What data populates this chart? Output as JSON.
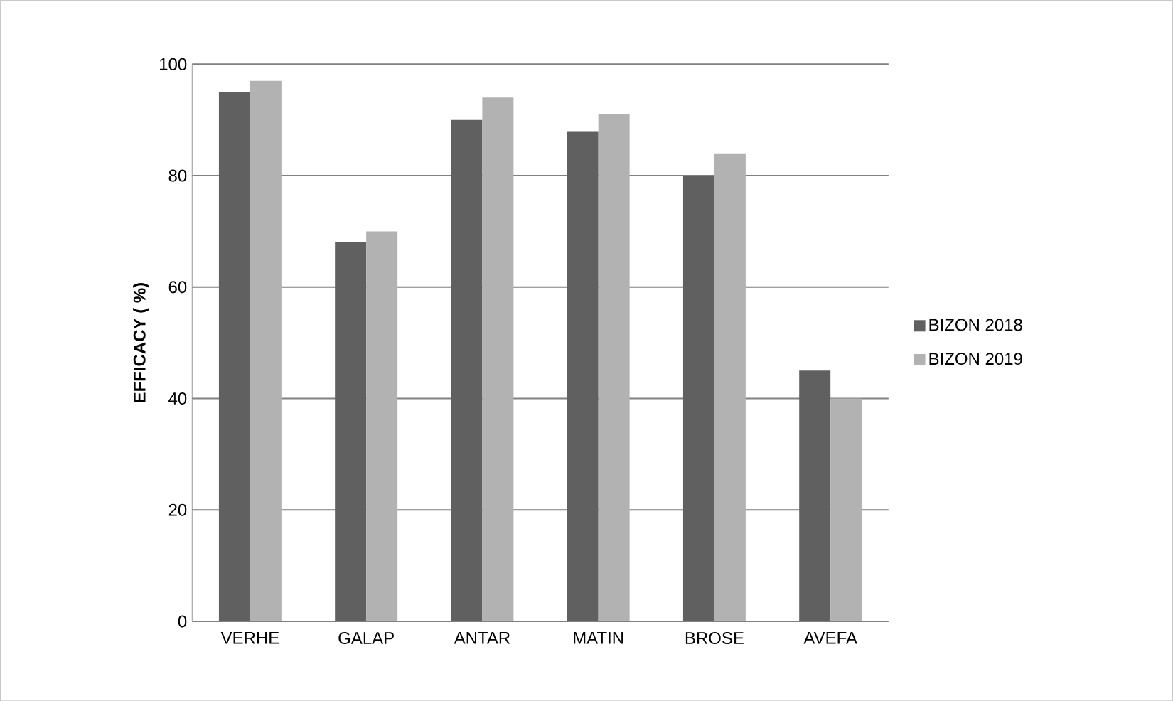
{
  "chart_data": {
    "type": "bar",
    "ylabel": "EFFICACY ( %)",
    "categories": [
      "VERHE",
      "GALAP",
      "ANTAR",
      "MATIN",
      "BROSE",
      "AVEFA"
    ],
    "series": [
      {
        "name": "BIZON 2018",
        "color": "#606060",
        "values": [
          95,
          68,
          90,
          88,
          80,
          45
        ]
      },
      {
        "name": "BIZON 2019",
        "color": "#b2b2b2",
        "values": [
          97,
          70,
          94,
          91,
          84,
          40
        ]
      }
    ],
    "ylim": [
      0,
      100
    ],
    "yticks": [
      0,
      20,
      40,
      60,
      80,
      100
    ],
    "grid": "y",
    "legend": "right"
  }
}
